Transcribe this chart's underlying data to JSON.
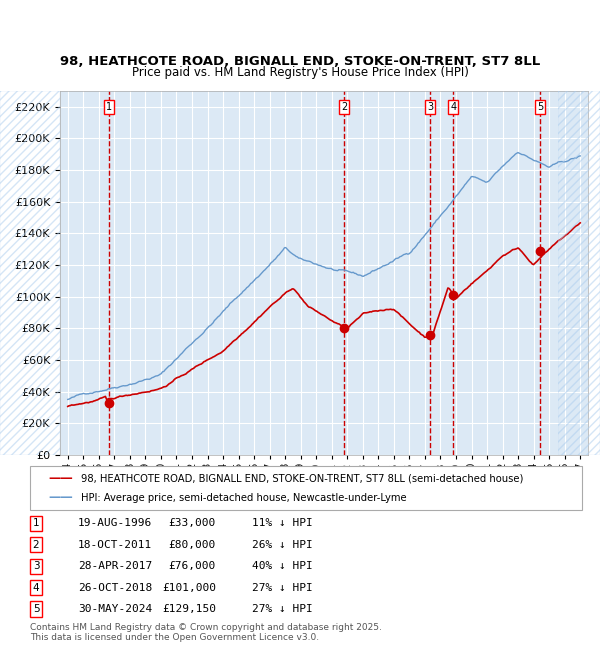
{
  "title_line1": "98, HEATHCOTE ROAD, BIGNALL END, STOKE-ON-TRENT, ST7 8LL",
  "title_line2": "Price paid vs. HM Land Registry's House Price Index (HPI)",
  "legend_red": "98, HEATHCOTE ROAD, BIGNALL END, STOKE-ON-TRENT, ST7 8LL (semi-detached house)",
  "legend_blue": "HPI: Average price, semi-detached house, Newcastle-under-Lyme",
  "footnote": "Contains HM Land Registry data © Crown copyright and database right 2025.\nThis data is licensed under the Open Government Licence v3.0.",
  "table_rows": [
    {
      "num": "1",
      "date": "19-AUG-1996",
      "price": "£33,000",
      "hpi": "11% ↓ HPI"
    },
    {
      "num": "2",
      "date": "18-OCT-2011",
      "price": "£80,000",
      "hpi": "26% ↓ HPI"
    },
    {
      "num": "3",
      "date": "28-APR-2017",
      "price": "£76,000",
      "hpi": "40% ↓ HPI"
    },
    {
      "num": "4",
      "date": "26-OCT-2018",
      "price": "£101,000",
      "hpi": "27% ↓ HPI"
    },
    {
      "num": "5",
      "date": "30-MAY-2024",
      "price": "£129,150",
      "hpi": "27% ↓ HPI"
    }
  ],
  "sale_dates_x": [
    1996.633,
    2011.792,
    2017.328,
    2018.831,
    2024.414
  ],
  "sale_prices_y": [
    33000,
    80000,
    76000,
    101000,
    129150
  ],
  "vline_x": [
    1996.633,
    2011.792,
    2017.328,
    2018.831,
    2024.414
  ],
  "bg_color": "#dce9f5",
  "plot_bg": "#dce9f5",
  "red_color": "#cc0000",
  "blue_color": "#6699cc",
  "grid_color": "#ffffff",
  "vline_color": "#cc0000",
  "ylim": [
    0,
    230000
  ],
  "xlim": [
    1993.5,
    2027.5
  ]
}
